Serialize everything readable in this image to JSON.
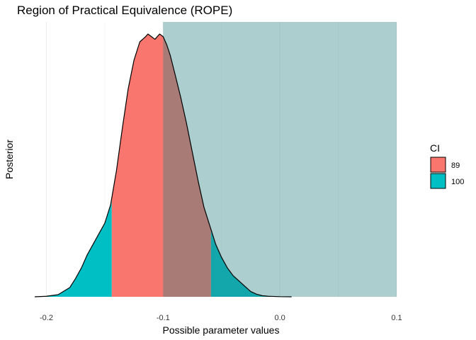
{
  "chart_data": {
    "type": "area",
    "title": "Region of Practical Equivalence (ROPE)",
    "xlabel": "Possible parameter values",
    "ylabel": "Posterior",
    "xlim": [
      -0.21,
      0.1
    ],
    "x_ticks": [
      -0.2,
      -0.1,
      0.0,
      0.1
    ],
    "x_tick_labels": [
      "-0.2",
      "-0.1",
      "0.0",
      "0.1"
    ],
    "grid": true,
    "rope": {
      "low": -0.1,
      "high": 0.1,
      "color": "#2F8588"
    },
    "density": {
      "x": [
        -0.21,
        -0.2,
        -0.19,
        -0.18,
        -0.175,
        -0.17,
        -0.165,
        -0.16,
        -0.155,
        -0.15,
        -0.145,
        -0.14,
        -0.135,
        -0.13,
        -0.125,
        -0.12,
        -0.115,
        -0.113,
        -0.11,
        -0.107,
        -0.105,
        -0.103,
        -0.1,
        -0.097,
        -0.094,
        -0.09,
        -0.085,
        -0.08,
        -0.075,
        -0.07,
        -0.065,
        -0.06,
        -0.055,
        -0.05,
        -0.045,
        -0.04,
        -0.035,
        -0.03,
        -0.025,
        -0.02,
        -0.015,
        -0.01,
        0.0,
        0.01
      ],
      "y": [
        0.0,
        0.002,
        0.008,
        0.035,
        0.07,
        0.11,
        0.16,
        0.2,
        0.24,
        0.28,
        0.35,
        0.48,
        0.64,
        0.79,
        0.9,
        0.97,
        0.99,
        1.0,
        0.99,
        0.98,
        0.99,
        1.0,
        0.99,
        0.96,
        0.92,
        0.85,
        0.76,
        0.66,
        0.55,
        0.44,
        0.34,
        0.27,
        0.2,
        0.15,
        0.11,
        0.08,
        0.06,
        0.04,
        0.02,
        0.01,
        0.004,
        0.002,
        0.0005,
        0.0
      ]
    },
    "ci": {
      "89": {
        "low": -0.144,
        "high": -0.059
      }
    },
    "legend": {
      "title": "CI",
      "position": "right",
      "entries": [
        {
          "label": "89",
          "color": "#F8766D"
        },
        {
          "label": "100",
          "color": "#00BFC4"
        }
      ]
    }
  }
}
